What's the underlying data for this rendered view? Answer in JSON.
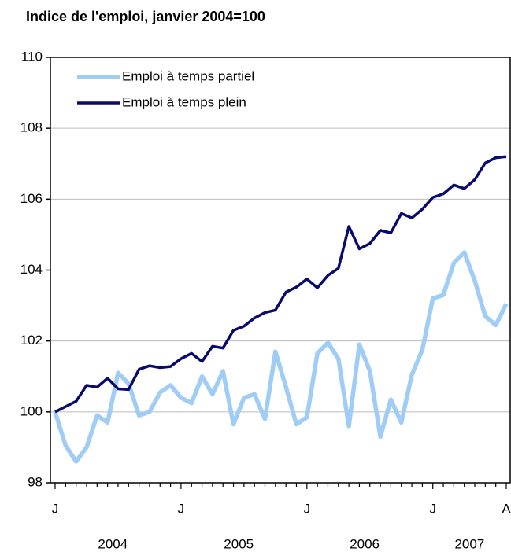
{
  "chart_data": {
    "type": "line",
    "title": "Indice de l'emploi, janvier 2004=100",
    "categories": [
      "J",
      null,
      null,
      null,
      null,
      null,
      null,
      null,
      null,
      null,
      null,
      null,
      "J",
      null,
      null,
      null,
      null,
      null,
      null,
      null,
      null,
      null,
      null,
      null,
      "J",
      null,
      null,
      null,
      null,
      null,
      null,
      null,
      null,
      null,
      null,
      null,
      "J",
      null,
      null,
      null,
      null,
      null,
      null,
      "A"
    ],
    "year_labels": [
      "2004",
      "2005",
      "2006",
      "2007"
    ],
    "series": [
      {
        "name": "Emploi à temps partiel",
        "color": "#9fcdf6",
        "values": [
          100,
          99.05,
          98.6,
          99.0,
          99.9,
          99.7,
          101.1,
          100.8,
          99.9,
          100.0,
          100.55,
          100.75,
          100.4,
          100.25,
          101.0,
          100.5,
          101.15,
          99.65,
          100.4,
          100.5,
          99.8,
          101.7,
          100.7,
          99.65,
          99.85,
          101.65,
          101.95,
          101.5,
          99.6,
          101.9,
          101.15,
          99.3,
          100.35,
          99.7,
          101.05,
          101.75,
          103.2,
          103.3,
          104.2,
          104.5,
          103.7,
          102.7,
          102.45,
          103.05
        ]
      },
      {
        "name": "Emploi à temps plein",
        "color": "#0a0a6e",
        "values": [
          100,
          100.15,
          100.3,
          100.75,
          100.7,
          100.95,
          100.65,
          100.63,
          101.2,
          101.3,
          101.25,
          101.28,
          101.5,
          101.65,
          101.42,
          101.85,
          101.8,
          102.3,
          102.42,
          102.65,
          102.8,
          102.87,
          103.38,
          103.52,
          103.75,
          103.5,
          103.85,
          104.05,
          105.23,
          104.6,
          104.75,
          105.12,
          105.05,
          105.6,
          105.47,
          105.72,
          106.05,
          106.15,
          106.4,
          106.3,
          106.55,
          107.02,
          107.17,
          107.2
        ]
      }
    ],
    "ylim": [
      98,
      110
    ],
    "yticks": [
      98,
      100,
      102,
      104,
      106,
      108,
      110
    ],
    "grid": true,
    "legend": "top-left"
  }
}
